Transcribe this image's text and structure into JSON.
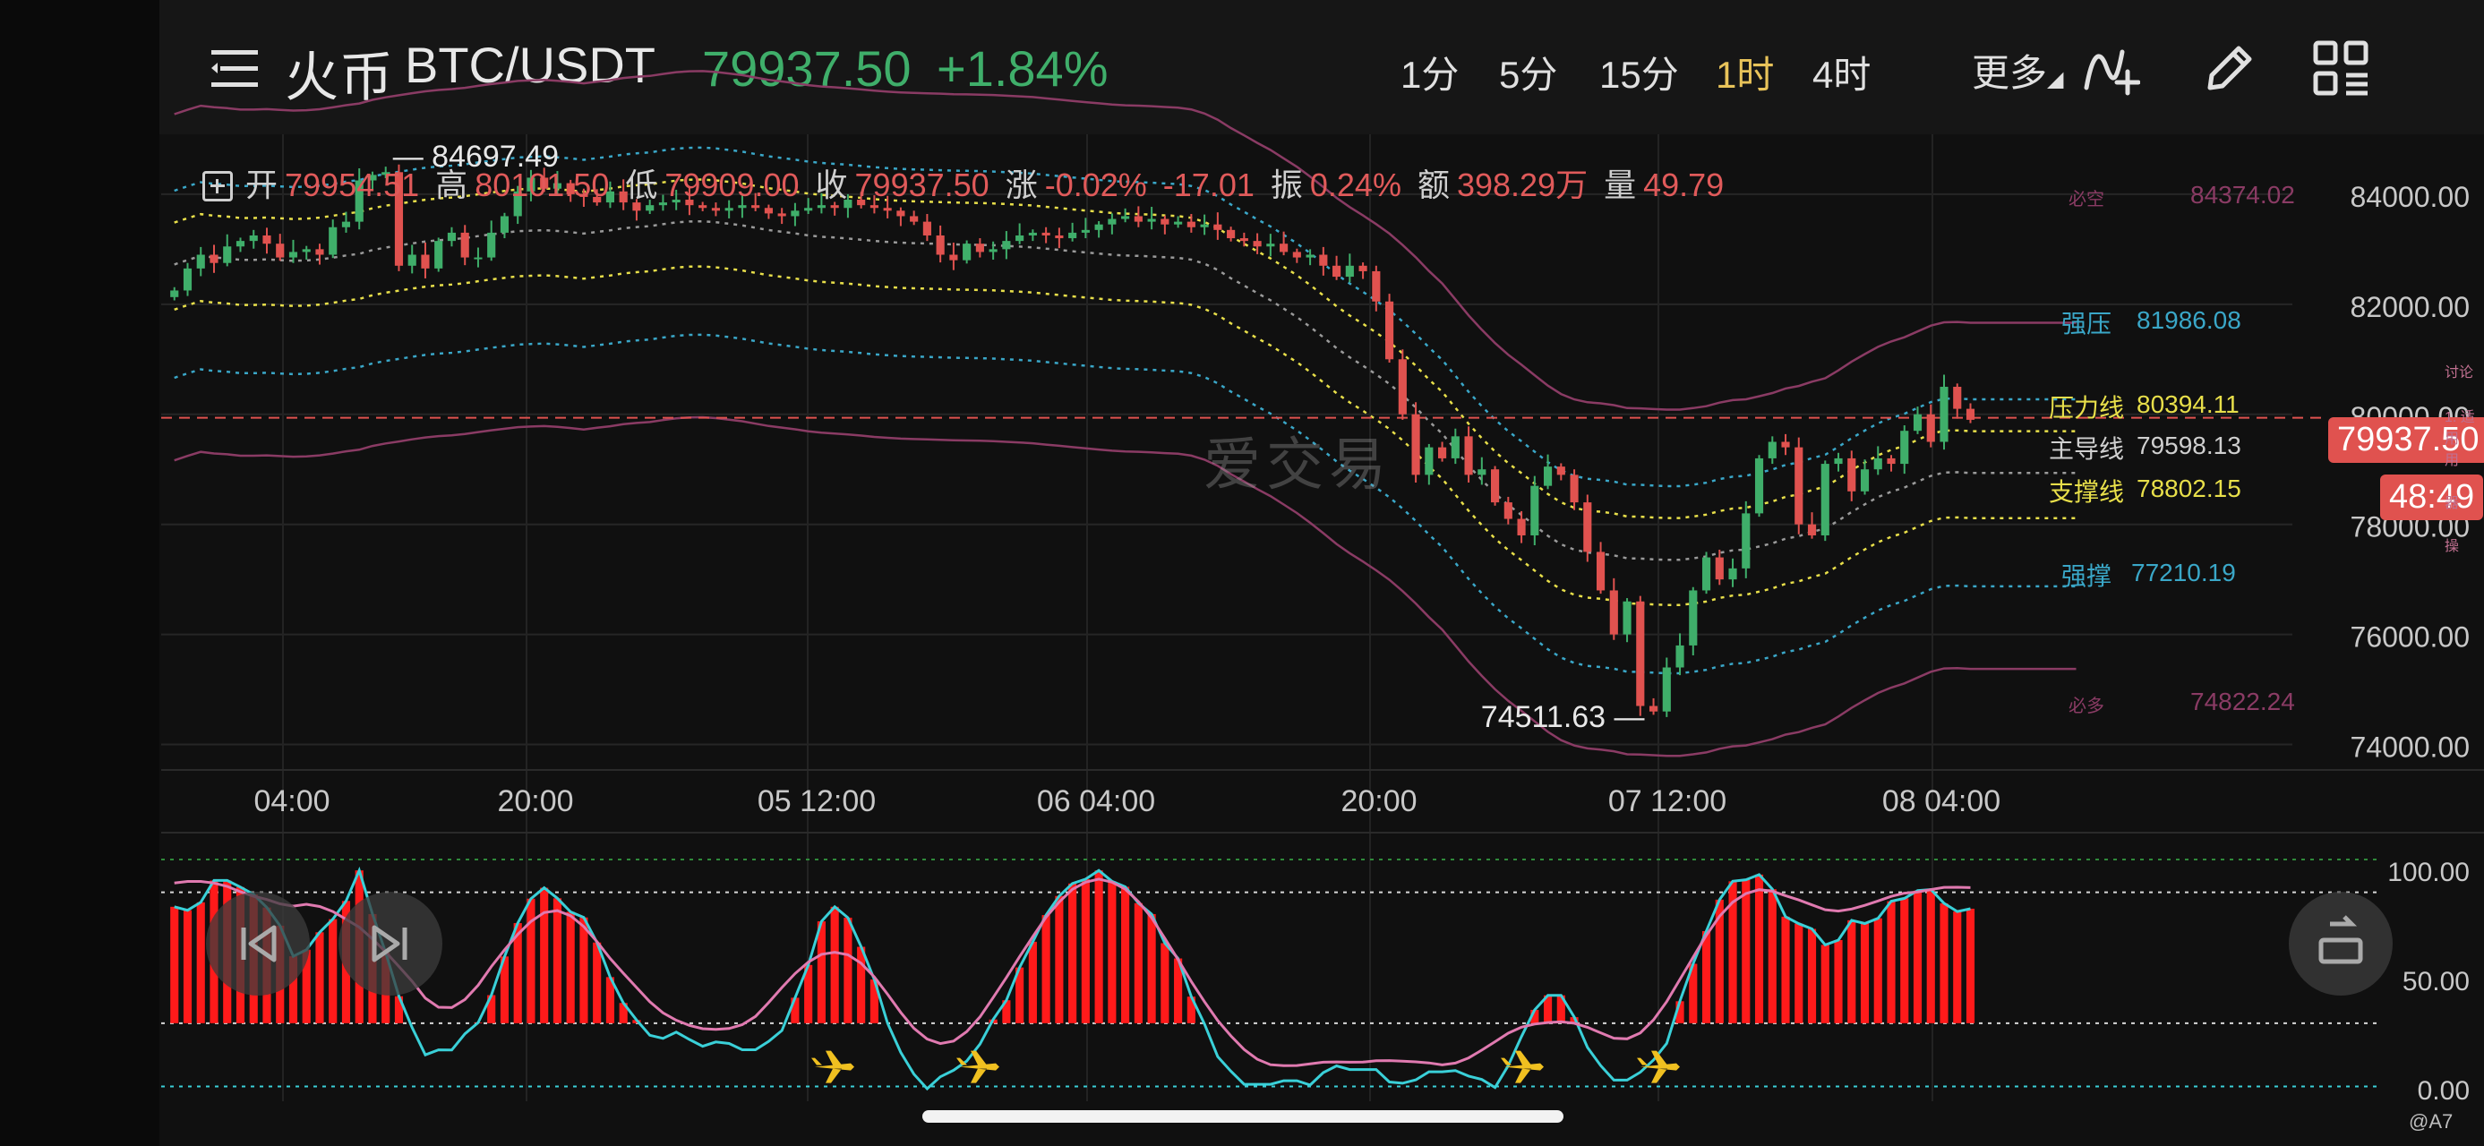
{
  "header": {
    "exchange": "火币",
    "pair": "BTC/USDT",
    "price": "79937.50",
    "change": "+1.84%",
    "timeframes": [
      {
        "label": "1分",
        "active": false
      },
      {
        "label": "5分",
        "active": false
      },
      {
        "label": "15分",
        "active": false
      },
      {
        "label": "1时",
        "active": true
      },
      {
        "label": "4时",
        "active": false
      }
    ],
    "more_label": "更多",
    "tools": [
      "indicator-draw-icon",
      "pencil-icon",
      "layout-grid-icon"
    ]
  },
  "ohlc": {
    "open_label": "开",
    "open": "79954.51",
    "high_label": "高",
    "high": "80101.50",
    "low_label": "低",
    "low": "79909.00",
    "close_label": "收",
    "close": "79937.50",
    "chg_label": "涨",
    "chg_pct": "-0.02%",
    "chg_abs": "-17.01",
    "amp_label": "振",
    "amp": "0.24%",
    "turnover_label": "额",
    "turnover": "398.29万",
    "volume_label": "量",
    "volume": "49.79"
  },
  "levels": [
    {
      "name": "必空",
      "value": "84374.02",
      "color": "#8a3b64"
    },
    {
      "name": "强压",
      "value": "81986.08",
      "color": "#3aa7c8"
    },
    {
      "name": "压力线",
      "value": "80394.11",
      "color": "#e8df4a"
    },
    {
      "name": "主导线",
      "value": "79598.13",
      "color": "#cfcfcf"
    },
    {
      "name": "支撑线",
      "value": "78802.15",
      "color": "#e8df4a"
    },
    {
      "name": "强撑",
      "value": "77210.19",
      "color": "#3aa7c8"
    },
    {
      "name": "必多",
      "value": "74822.24",
      "color": "#8a3b64"
    }
  ],
  "price_axis": [
    "84000.00",
    "82000.00",
    "80000.00",
    "78000.00",
    "76000.00",
    "74000.00"
  ],
  "current_price_tag": "79937.50",
  "countdown_tag": "48:49",
  "osc_axis": [
    "100.00",
    "50.00",
    "0.00"
  ],
  "annotations": {
    "high": "84697.49",
    "low": "74511.63"
  },
  "watermark": "爱交易",
  "side_labels": [
    "讨论",
    "1. 适用",
    "用",
    "器",
    "操"
  ],
  "credit": "@A7",
  "chart_data": {
    "type": "candlestick",
    "interval": "1时",
    "time_labels": [
      "04:00",
      "20:00",
      "05 12:00",
      "06 04:00",
      "20:00",
      "07 12:00",
      "08 04:00"
    ],
    "yrange": [
      73700,
      84600
    ],
    "high_mark": 84697.49,
    "low_mark": 74511.63,
    "closes": [
      82250,
      82650,
      82900,
      82750,
      83050,
      83150,
      83250,
      83100,
      82850,
      82950,
      83000,
      82900,
      83400,
      83500,
      84250,
      84350,
      84400,
      82700,
      82900,
      82650,
      83150,
      83300,
      82850,
      82850,
      83300,
      83600,
      84050,
      84300,
      84100,
      84200,
      84000,
      83950,
      83850,
      84050,
      83850,
      83700,
      83800,
      83850,
      83900,
      83800,
      83750,
      83700,
      83750,
      83800,
      83750,
      83650,
      83600,
      83700,
      83750,
      83800,
      83750,
      83900,
      83800,
      83750,
      83700,
      83600,
      83500,
      83250,
      82900,
      82800,
      83100,
      82950,
      83000,
      83150,
      83250,
      83300,
      83250,
      83200,
      83300,
      83350,
      83450,
      83550,
      83600,
      83500,
      83550,
      83450,
      83500,
      83400,
      83450,
      83350,
      83200,
      83150,
      83050,
      83100,
      82950,
      82850,
      82900,
      82700,
      82500,
      82700,
      82600,
      82050,
      81000,
      80000,
      78900,
      79400,
      79200,
      79600,
      78900,
      79000,
      78400,
      78100,
      77800,
      78700,
      79050,
      78900,
      78400,
      77500,
      76800,
      76000,
      76600,
      74700,
      74600,
      75400,
      75800,
      76800,
      77400,
      77000,
      77200,
      78200,
      79200,
      79500,
      79400,
      78000,
      77800,
      79100,
      79200,
      78600,
      79000,
      79200,
      79100,
      79700,
      80000,
      79500,
      80500,
      80100,
      79900
    ]
  }
}
